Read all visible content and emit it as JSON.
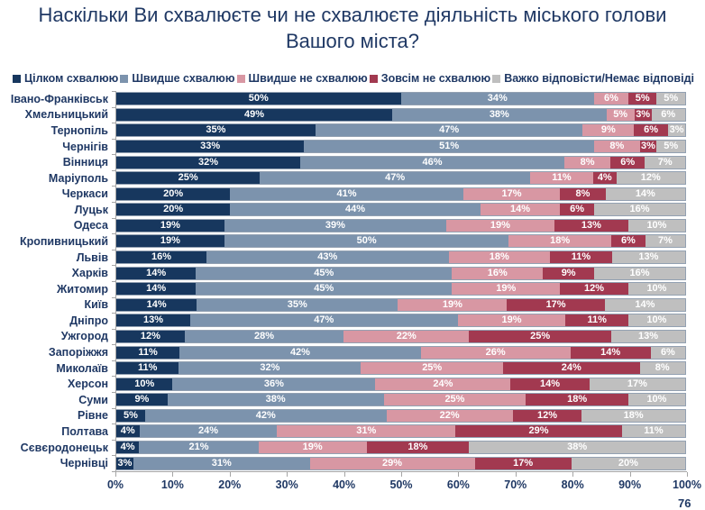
{
  "title": "Наскільки Ви схвалюєте чи не схвалюєте діяльність міського голови Вашого міста?",
  "page_number": "76",
  "colors": {
    "title_text": "#1F3864",
    "axis_line": "#A6A6A6",
    "bar_border": "#93A1B2",
    "value_label_text": "#FFFFFF"
  },
  "chart_data": {
    "type": "bar",
    "orientation": "horizontal-stacked",
    "title": "Наскільки Ви схвалюєте чи не схвалюєте діяльність міського голови Вашого міста?",
    "xlabel": "",
    "ylabel": "",
    "xlim": [
      0,
      100
    ],
    "x_ticks": [
      "0%",
      "10%",
      "20%",
      "30%",
      "40%",
      "50%",
      "60%",
      "70%",
      "80%",
      "90%",
      "100%"
    ],
    "legend_position": "top",
    "grid": false,
    "value_label_format": "{value}%",
    "categories": [
      "Івано-Франківськ",
      "Хмельницький",
      "Тернопіль",
      "Чернігів",
      "Вінниця",
      "Маріуполь",
      "Черкаси",
      "Луцьк",
      "Одеса",
      "Кропивницький",
      "Львів",
      "Харків",
      "Житомир",
      "Київ",
      "Дніпро",
      "Ужгород",
      "Запоріжжя",
      "Миколаїв",
      "Херсон",
      "Суми",
      "Рівне",
      "Полтава",
      "Сєвєродонецьк",
      "Чернівці"
    ],
    "series": [
      {
        "name": "Цілком схвалюю",
        "color": "#17375E",
        "values": [
          50,
          49,
          35,
          33,
          32,
          25,
          20,
          20,
          19,
          19,
          16,
          14,
          14,
          14,
          13,
          12,
          11,
          11,
          10,
          9,
          5,
          4,
          4,
          3
        ]
      },
      {
        "name": "Швидше схвалюю",
        "color": "#7C93AD",
        "values": [
          34,
          38,
          47,
          51,
          46,
          47,
          41,
          44,
          39,
          50,
          43,
          45,
          45,
          35,
          47,
          28,
          42,
          32,
          36,
          38,
          42,
          24,
          21,
          31
        ]
      },
      {
        "name": "Швидше не схвалюю",
        "color": "#D897A3",
        "values": [
          6,
          5,
          9,
          8,
          8,
          11,
          17,
          14,
          19,
          18,
          18,
          16,
          19,
          19,
          19,
          22,
          26,
          25,
          24,
          25,
          22,
          31,
          19,
          29
        ]
      },
      {
        "name": "Зовсім не схвалюю",
        "color": "#A23950",
        "values": [
          5,
          3,
          6,
          3,
          6,
          4,
          8,
          6,
          13,
          6,
          11,
          9,
          12,
          17,
          11,
          25,
          14,
          24,
          14,
          18,
          12,
          29,
          18,
          17
        ]
      },
      {
        "name": "Важко відповісти/Немає відповіді",
        "color": "#BFBFBF",
        "values": [
          5,
          6,
          3,
          5,
          7,
          12,
          14,
          16,
          10,
          7,
          13,
          16,
          10,
          14,
          10,
          13,
          6,
          8,
          17,
          10,
          18,
          11,
          38,
          20
        ]
      }
    ]
  }
}
